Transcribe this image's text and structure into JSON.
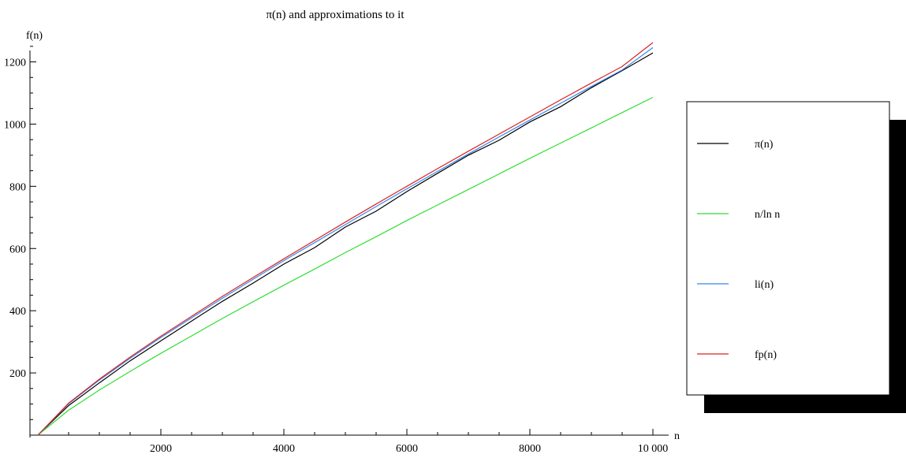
{
  "chart_data": {
    "type": "line",
    "title": "π(n) and approximations to it",
    "xlabel": "n",
    "ylabel": "f(n)",
    "xlim": [
      0,
      10000
    ],
    "ylim": [
      0,
      1290
    ],
    "x_ticks": [
      2000,
      4000,
      6000,
      8000,
      10000
    ],
    "x_tick_labels": [
      "2000",
      "4000",
      "6000",
      "8000",
      "10 000"
    ],
    "y_ticks": [
      200,
      400,
      600,
      800,
      1000,
      1200
    ],
    "y_tick_labels": [
      "200",
      "400",
      "600",
      "800",
      "1000",
      "1200"
    ],
    "grid": false,
    "legend_position": "right",
    "x": [
      0,
      500,
      1000,
      1500,
      2000,
      2500,
      3000,
      3500,
      4000,
      4500,
      5000,
      5500,
      6000,
      6500,
      7000,
      7500,
      8000,
      8500,
      9000,
      9500,
      10000
    ],
    "series": [
      {
        "name": "π(n)",
        "color": "#000000",
        "values": [
          0,
          95,
          168,
          239,
          303,
          367,
          430,
          489,
          550,
          603,
          669,
          720,
          783,
          842,
          900,
          948,
          1007,
          1056,
          1117,
          1172,
          1229
        ]
      },
      {
        "name": "n/ln n",
        "color": "#33dd33",
        "values": [
          0,
          80,
          145,
          205,
          263,
          319,
          375,
          429,
          482,
          534,
          587,
          638,
          690,
          740,
          790,
          840,
          890,
          939,
          988,
          1037,
          1086
        ]
      },
      {
        "name": "li(n)",
        "color": "#3388ee",
        "values": [
          0,
          101,
          177,
          247,
          314,
          377,
          440,
          501,
          561,
          619,
          677,
          735,
          792,
          848,
          904,
          959,
          1013,
          1067,
          1121,
          1174,
          1246
        ]
      },
      {
        "name": "fp(n)",
        "color": "#dd2222",
        "values": [
          0,
          103,
          180,
          251,
          318,
          382,
          446,
          507,
          567,
          626,
          685,
          743,
          800,
          857,
          913,
          968,
          1023,
          1078,
          1132,
          1185,
          1262
        ]
      }
    ]
  }
}
